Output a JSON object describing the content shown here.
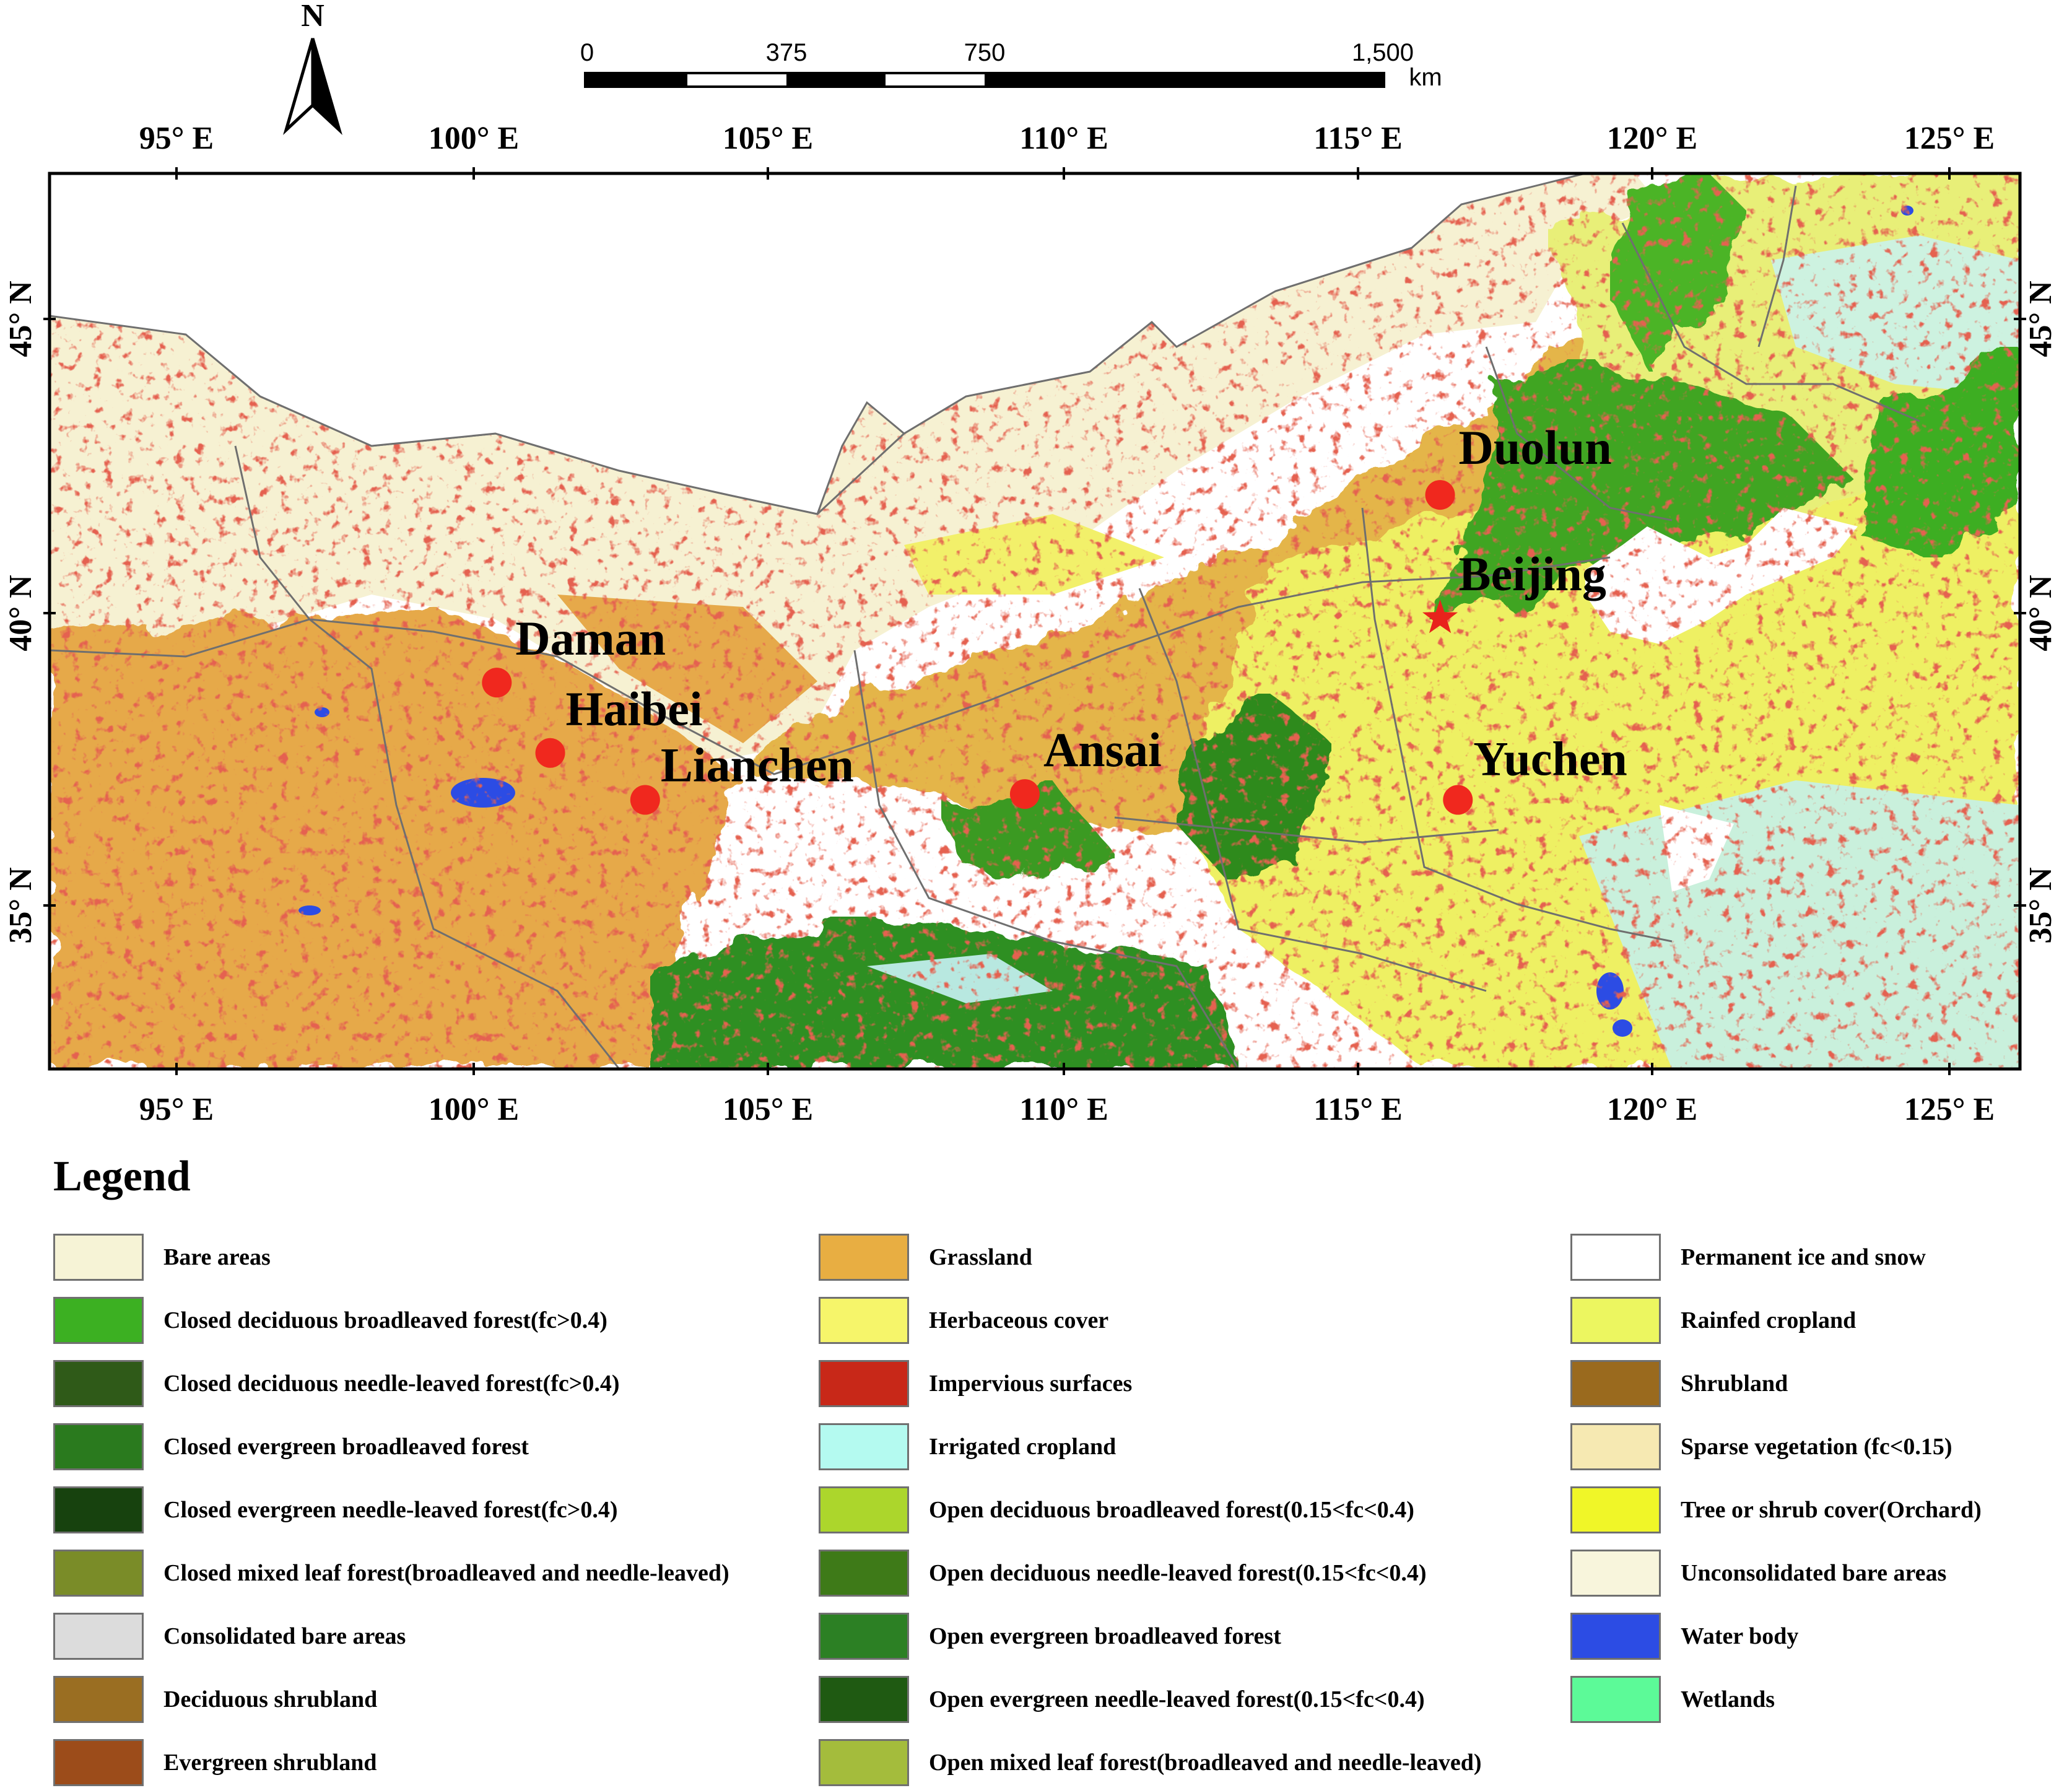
{
  "north_arrow": {
    "letter": "N"
  },
  "scale_bar": {
    "ticks": [
      "0",
      "375",
      "750",
      "1,500"
    ],
    "unit": "km"
  },
  "axes": {
    "lon_labels": [
      "95° E",
      "100° E",
      "105° E",
      "110° E",
      "115° E",
      "120° E",
      "125° E"
    ],
    "lat_labels": [
      "45° N",
      "40° N",
      "35° N"
    ]
  },
  "sites": [
    {
      "name": "Duolun",
      "lon": 116.3,
      "lat": 42.0,
      "marker": "dot"
    },
    {
      "name": "Beijing",
      "lon": 116.3,
      "lat": 39.9,
      "marker": "star"
    },
    {
      "name": "Daman",
      "lon": 100.4,
      "lat": 38.8,
      "marker": "dot"
    },
    {
      "name": "Haibei",
      "lon": 101.3,
      "lat": 37.6,
      "marker": "dot"
    },
    {
      "name": "Lianchen",
      "lon": 102.9,
      "lat": 36.8,
      "marker": "dot"
    },
    {
      "name": "Ansai",
      "lon": 109.3,
      "lat": 36.9,
      "marker": "dot"
    },
    {
      "name": "Yuchen",
      "lon": 116.6,
      "lat": 36.8,
      "marker": "dot"
    }
  ],
  "legend": {
    "title": "Legend",
    "columns": [
      [
        {
          "label": "Bare areas",
          "color": "#f6f3d6"
        },
        {
          "label": "Closed deciduous broadleaved forest(fc>0.4)",
          "color": "#3cb022"
        },
        {
          "label": "Closed deciduous needle-leaved forest(fc>0.4)",
          "color": "#2f5a18"
        },
        {
          "label": "Closed evergreen broadleaved forest",
          "color": "#2a7a1e"
        },
        {
          "label": "Closed evergreen needle-leaved forest(fc>0.4)",
          "color": "#17420e"
        },
        {
          "label": "Closed mixed leaf forest(broadleaved and needle-leaved)",
          "color": "#7a8c28"
        },
        {
          "label": "Consolidated bare areas",
          "color": "#dcdcdc"
        },
        {
          "label": "Deciduous shrubland",
          "color": "#9a6e22"
        },
        {
          "label": "Evergreen shrubland",
          "color": "#9c4c1a"
        }
      ],
      [
        {
          "label": "Grassland",
          "color": "#e8ae42"
        },
        {
          "label": "Herbaceous cover",
          "color": "#f6f56a"
        },
        {
          "label": "Impervious surfaces",
          "color": "#c82818"
        },
        {
          "label": "Irrigated cropland",
          "color": "#b4faf0"
        },
        {
          "label": "Open deciduous broadleaved forest(0.15<fc<0.4)",
          "color": "#acd62c"
        },
        {
          "label": "Open deciduous needle-leaved forest(0.15<fc<0.4)",
          "color": "#3e7a18"
        },
        {
          "label": "Open evergreen broadleaved forest",
          "color": "#2c8024"
        },
        {
          "label": "Open evergreen needle-leaved forest(0.15<fc<0.4)",
          "color": "#1f5a12"
        },
        {
          "label": "Open mixed leaf forest(broadleaved and needle-leaved)",
          "color": "#a4bc3c"
        }
      ],
      [
        {
          "label": "Permanent ice and snow",
          "color": "#ffffff"
        },
        {
          "label": "Rainfed cropland",
          "color": "#ecf660"
        },
        {
          "label": "Shrubland",
          "color": "#9a6a1e"
        },
        {
          "label": "Sparse vegetation (fc<0.15)",
          "color": "#f6e9b2"
        },
        {
          "label": "Tree or shrub cover(Orchard)",
          "color": "#f0f628"
        },
        {
          "label": "Unconsolidated bare areas",
          "color": "#f8f5dc"
        },
        {
          "label": "Water body",
          "color": "#2c4ce4"
        },
        {
          "label": "Wetlands",
          "color": "#5cfa98"
        }
      ]
    ]
  }
}
